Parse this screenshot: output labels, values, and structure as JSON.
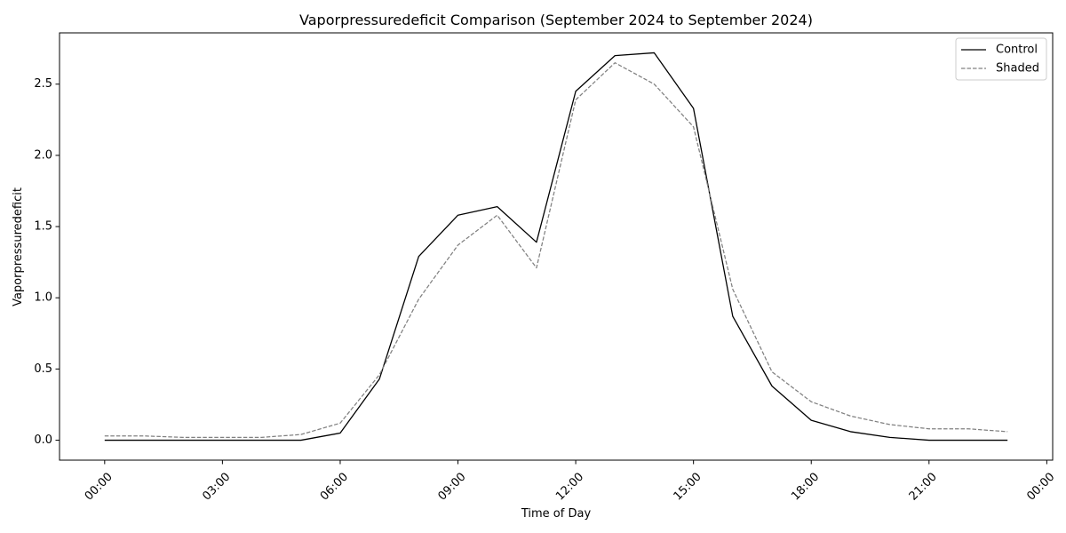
{
  "chart_data": {
    "type": "line",
    "title": "Vaporpressuredeficit Comparison (September 2024 to September 2024)",
    "xlabel": "Time of Day",
    "ylabel": "Vaporpressuredeficit",
    "x_unit": "hours",
    "xlim": [
      -1.15,
      24.15
    ],
    "ylim": [
      -0.14,
      2.86
    ],
    "x_ticks": [
      {
        "value": 0,
        "label": "00:00"
      },
      {
        "value": 3,
        "label": "03:00"
      },
      {
        "value": 6,
        "label": "06:00"
      },
      {
        "value": 9,
        "label": "09:00"
      },
      {
        "value": 12,
        "label": "12:00"
      },
      {
        "value": 15,
        "label": "15:00"
      },
      {
        "value": 18,
        "label": "18:00"
      },
      {
        "value": 21,
        "label": "21:00"
      },
      {
        "value": 24,
        "label": "00:00"
      }
    ],
    "y_ticks": [
      {
        "value": 0.0,
        "label": "0.0"
      },
      {
        "value": 0.5,
        "label": "0.5"
      },
      {
        "value": 1.0,
        "label": "1.0"
      },
      {
        "value": 1.5,
        "label": "1.5"
      },
      {
        "value": 2.0,
        "label": "2.0"
      },
      {
        "value": 2.5,
        "label": "2.5"
      }
    ],
    "grid": false,
    "legend_position": "top-right",
    "x": [
      0,
      1,
      2,
      3,
      4,
      5,
      6,
      7,
      8,
      9,
      10,
      11,
      12,
      13,
      14,
      15,
      16,
      17,
      18,
      19,
      20,
      21,
      22,
      23
    ],
    "series": [
      {
        "name": "Control",
        "color": "#000000",
        "dash": "solid",
        "values": [
          0.0,
          0.0,
          0.0,
          0.0,
          0.0,
          0.0,
          0.05,
          0.43,
          1.29,
          1.58,
          1.64,
          1.39,
          2.45,
          2.7,
          2.72,
          2.33,
          0.87,
          0.38,
          0.14,
          0.06,
          0.02,
          0.0,
          0.0,
          0.0
        ]
      },
      {
        "name": "Shaded",
        "color": "#808080",
        "dash": "dashed",
        "values": [
          0.03,
          0.03,
          0.02,
          0.02,
          0.02,
          0.04,
          0.12,
          0.46,
          0.99,
          1.37,
          1.58,
          1.21,
          2.39,
          2.65,
          2.5,
          2.2,
          1.06,
          0.48,
          0.27,
          0.17,
          0.11,
          0.08,
          0.08,
          0.06
        ]
      }
    ]
  }
}
